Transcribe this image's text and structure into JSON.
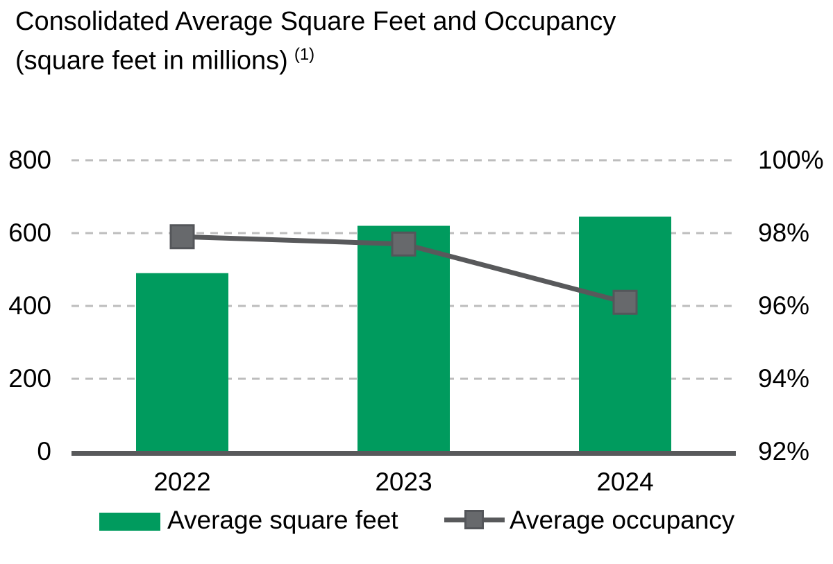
{
  "title": {
    "line1": "Consolidated Average Square Feet and Occupancy",
    "line2": "(square feet in millions)",
    "footnote_marker": "(1)"
  },
  "legend": [
    {
      "label": "Average square feet",
      "swatch": "green-bar"
    },
    {
      "label": "Average occupancy",
      "swatch": "gray-line-square-marker"
    }
  ],
  "chart_data": {
    "type": "bar",
    "subtype": "combo bar + line, dual axis",
    "categories": [
      "2022",
      "2023",
      "2024"
    ],
    "series": [
      {
        "name": "Average square feet",
        "type": "bar",
        "axis": "left",
        "values": [
          490,
          620,
          645
        ]
      },
      {
        "name": "Average occupancy",
        "type": "line",
        "axis": "right",
        "marker": "square",
        "values_percent": [
          97.9,
          97.7,
          96.1
        ]
      }
    ],
    "left_axis": {
      "ticks": [
        0,
        200,
        400,
        600,
        800
      ],
      "range": [
        0,
        800
      ]
    },
    "right_axis": {
      "tick_labels": [
        "92%",
        "94%",
        "96%",
        "98%",
        "100%"
      ],
      "tick_values": [
        92,
        94,
        96,
        98,
        100
      ],
      "range": [
        92,
        100
      ]
    },
    "grid": "horizontal dashed gridlines, solid dark baseline",
    "legend_position": "bottom"
  },
  "colors": {
    "bar_green": "#009B5E",
    "line_gray": "#58595B",
    "marker_fill": "#67696C",
    "marker_border": "#54565A",
    "axis_line": "#58595B",
    "gridline": "#BDBDBD",
    "text": "#000000",
    "background": "#FFFFFF"
  }
}
